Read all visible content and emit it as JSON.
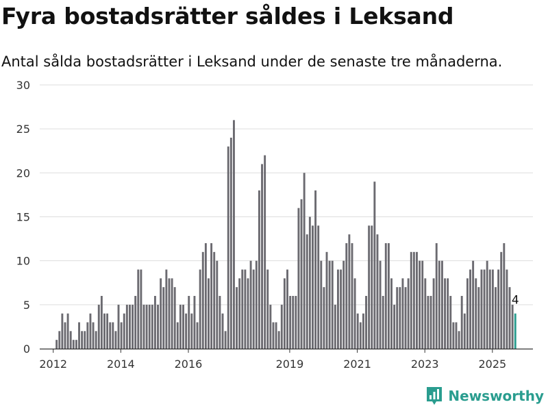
{
  "title": "Fyra bostadsrätter såldes i Leksand",
  "subtitle": "Antal sålda bostadsrätter i Leksand under de senaste tre månaderna.",
  "brand": {
    "name": "Newsworthy",
    "icon": "bar-chart-logo-icon"
  },
  "colors": {
    "bar": "#6b6a70",
    "highlight": "#2a9d8f",
    "grid": "#dddddd",
    "axis": "#333333",
    "label": "#333333"
  },
  "chart_data": {
    "type": "bar",
    "title": "Fyra bostadsrätter såldes i Leksand",
    "xlabel": "",
    "ylabel": "",
    "ylim": [
      0,
      30
    ],
    "yticks": [
      0,
      5,
      10,
      15,
      20,
      25,
      30
    ],
    "xlim": [
      2011.6,
      2026.2
    ],
    "xticks": [
      2012,
      2014,
      2016,
      2019,
      2021,
      2023,
      2025
    ],
    "grid": true,
    "x_start": 2012.1,
    "x_step": 0.0833,
    "values": [
      1,
      2,
      4,
      3,
      4,
      2,
      1,
      1,
      3,
      2,
      2,
      3,
      4,
      3,
      2,
      5,
      6,
      4,
      4,
      3,
      3,
      2,
      5,
      3,
      4,
      5,
      5,
      5,
      6,
      9,
      9,
      5,
      5,
      5,
      5,
      6,
      5,
      8,
      7,
      9,
      8,
      8,
      7,
      3,
      5,
      5,
      4,
      6,
      4,
      6,
      3,
      9,
      11,
      12,
      8,
      12,
      11,
      10,
      6,
      4,
      2,
      23,
      24,
      26,
      7,
      8,
      9,
      9,
      8,
      10,
      9,
      10,
      18,
      21,
      22,
      9,
      5,
      3,
      3,
      2,
      5,
      8,
      9,
      6,
      6,
      6,
      16,
      17,
      20,
      13,
      15,
      14,
      18,
      14,
      10,
      7,
      11,
      10,
      10,
      5,
      9,
      9,
      10,
      12,
      13,
      12,
      8,
      4,
      3,
      4,
      6,
      14,
      14,
      19,
      13,
      10,
      6,
      12,
      12,
      8,
      5,
      7,
      7,
      8,
      7,
      8,
      11,
      11,
      11,
      10,
      10,
      8,
      6,
      6,
      8,
      12,
      10,
      10,
      8,
      8,
      6,
      3,
      3,
      2,
      6,
      4,
      8,
      9,
      10,
      8,
      7,
      9,
      9,
      10,
      9,
      9,
      7,
      9,
      11,
      12,
      9,
      7,
      5,
      4
    ],
    "highlight_index": 163,
    "annotations": [
      {
        "index": 163,
        "text": "4"
      }
    ]
  }
}
